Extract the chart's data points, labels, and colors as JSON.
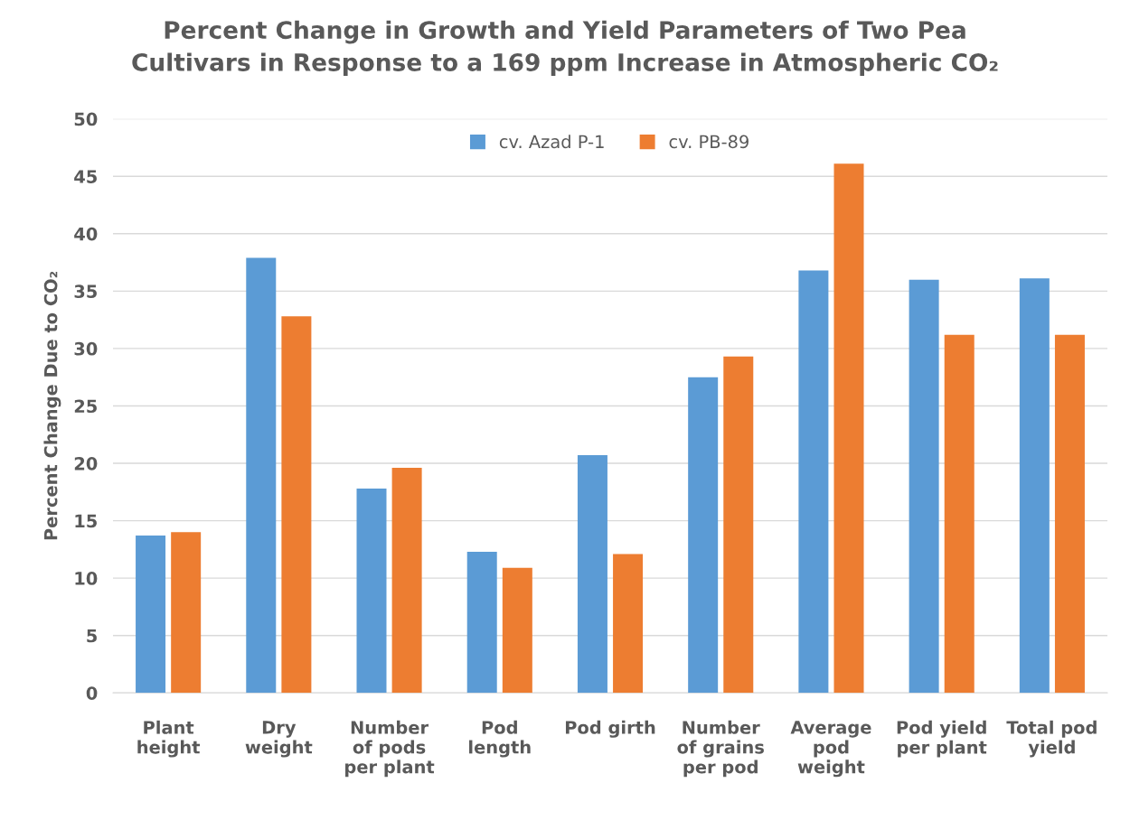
{
  "chart_data": {
    "type": "bar",
    "title": "Percent Change in Growth and Yield Parameters of Two Pea\nCultivars in Response to a 169 ppm Increase in Atmospheric CO₂",
    "ylabel": "Percent Change Due to CO₂",
    "categories": [
      "Plant\nheight",
      "Dry\nweight",
      "Number\nof pods\nper plant",
      "Pod\nlength",
      "Pod girth",
      "Number\nof grains\nper pod",
      "Average\npod\nweight",
      "Pod yield\nper plant",
      "Total pod\nyield"
    ],
    "series": [
      {
        "name": "cv. Azad P-1",
        "color": "#5b9bd5",
        "values": [
          13.7,
          37.9,
          17.8,
          12.3,
          20.7,
          27.5,
          36.8,
          36.0,
          36.1
        ]
      },
      {
        "name": "cv. PB-89",
        "color": "#ed7d31",
        "values": [
          14.0,
          32.8,
          19.6,
          10.9,
          12.1,
          29.3,
          46.1,
          31.2,
          31.2
        ]
      }
    ],
    "ylim": [
      0,
      50
    ],
    "yticks": [
      0,
      5,
      10,
      15,
      20,
      25,
      30,
      35,
      40,
      45,
      50
    ],
    "grid": "y",
    "legend": "top"
  }
}
